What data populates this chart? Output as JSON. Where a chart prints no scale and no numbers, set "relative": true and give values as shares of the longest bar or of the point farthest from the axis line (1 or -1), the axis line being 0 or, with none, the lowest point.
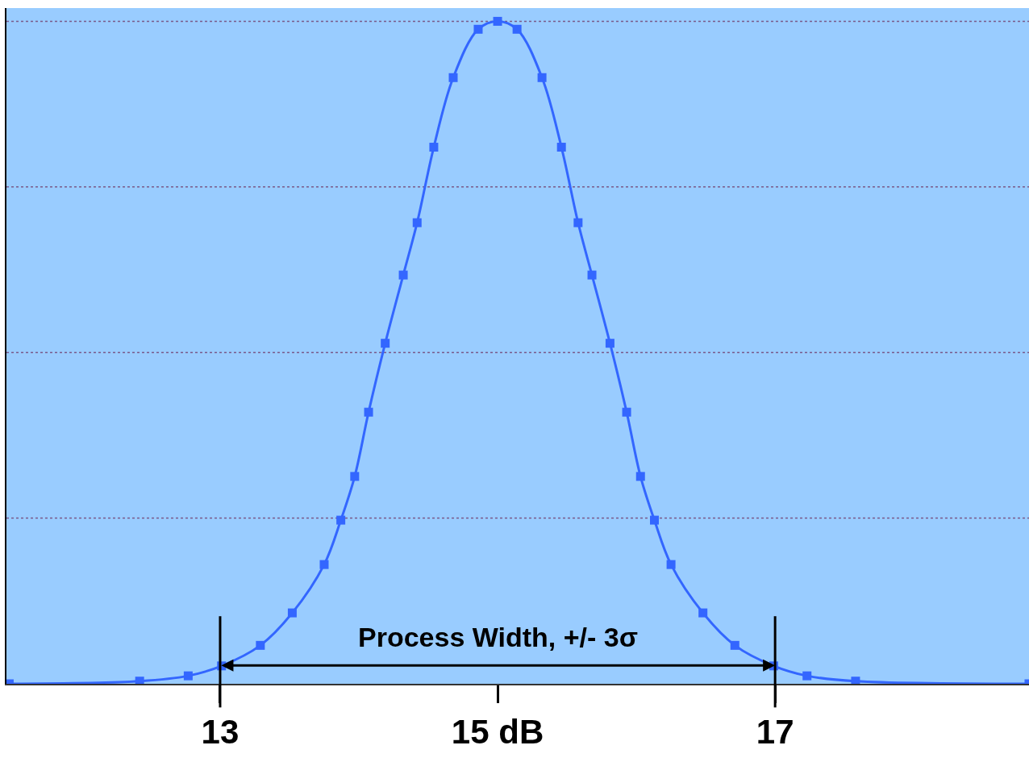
{
  "chart_data": {
    "type": "line",
    "relative": true,
    "marker": "square",
    "x": [
      11.48,
      12.42,
      12.77,
      13.01,
      13.29,
      13.52,
      13.75,
      13.87,
      13.97,
      14.07,
      14.19,
      14.32,
      14.42,
      14.54,
      14.68,
      14.86,
      15.0,
      15.14,
      15.32,
      15.46,
      15.58,
      15.68,
      15.81,
      15.93,
      16.03,
      16.13,
      16.25,
      16.48,
      16.71,
      16.99,
      17.23,
      17.58,
      18.83
    ],
    "series": [
      {
        "color": "#3366ff",
        "values": [
          0,
          0.004,
          0.012,
          0.027,
          0.058,
          0.107,
          0.18,
          0.247,
          0.313,
          0.41,
          0.514,
          0.617,
          0.696,
          0.81,
          0.915,
          0.988,
          1,
          0.988,
          0.915,
          0.81,
          0.696,
          0.617,
          0.514,
          0.41,
          0.313,
          0.247,
          0.18,
          0.107,
          0.058,
          0.027,
          0.012,
          0.004,
          0
        ]
      }
    ],
    "xlim": [
      11.46,
      18.83
    ],
    "xticks": [
      13,
      {
        "value": 15,
        "label": "15 dB"
      },
      17
    ],
    "ref_lines": [
      {
        "axis": "x",
        "value": 13,
        "color": "#000000"
      },
      {
        "axis": "x",
        "value": 17,
        "color": "#000000"
      },
      {
        "axis": "y",
        "value": 0.25,
        "color": "#7a5a8a",
        "line_style": "dotted"
      },
      {
        "axis": "y",
        "value": 0.5,
        "color": "#7a5a8a",
        "line_style": "dotted"
      },
      {
        "axis": "y",
        "value": 0.75,
        "color": "#7a5a8a",
        "line_style": "dotted"
      },
      {
        "axis": "y",
        "value": 1,
        "color": "#7a5a8a",
        "line_style": "dotted"
      }
    ],
    "annotations": [
      "Process Width, +/- 3σ"
    ]
  }
}
